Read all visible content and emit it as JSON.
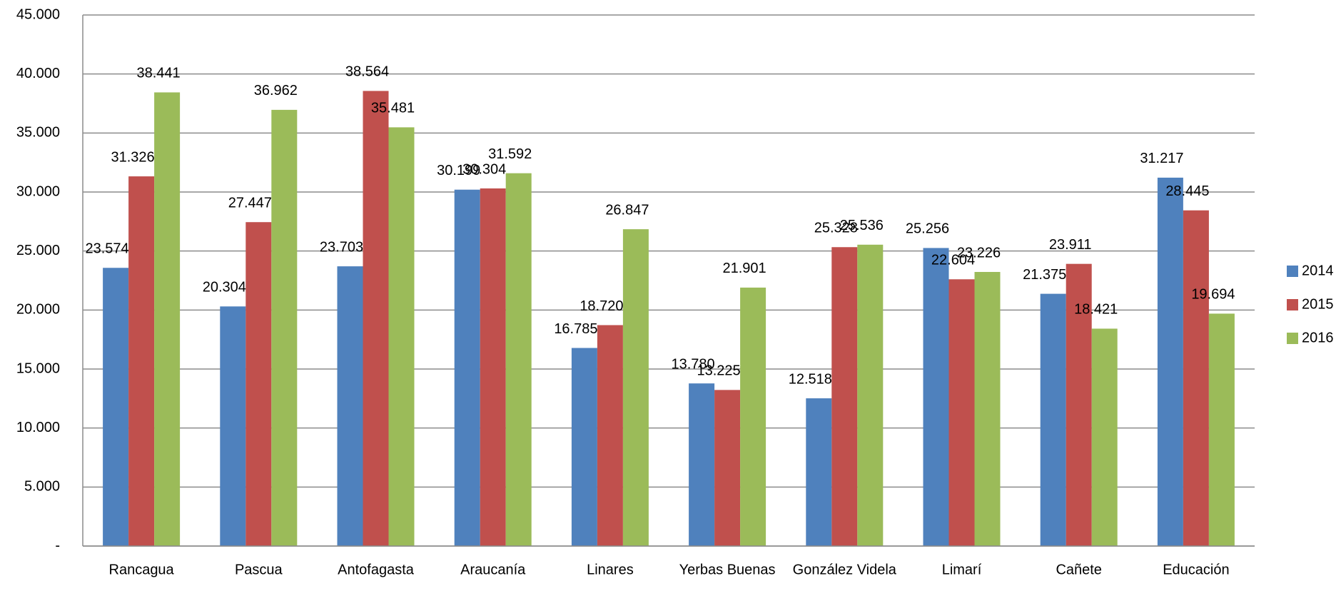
{
  "chart_data": {
    "type": "bar",
    "categories": [
      "Rancagua",
      "Pascua",
      "Antofagasta",
      "Araucanía",
      "Linares",
      "Yerbas Buenas",
      "González Videla",
      "Limarí",
      "Cañete",
      "Educación"
    ],
    "series": [
      {
        "name": "2014",
        "color": "#4f81bd",
        "values": [
          23574,
          20304,
          23703,
          30199,
          16785,
          13780,
          12518,
          25256,
          21375,
          31217
        ],
        "value_labels": [
          "23.574",
          "20.304",
          "23.703",
          "30.199",
          "16.785",
          "13.780",
          "12.518",
          "25.256",
          "21.375",
          "31.217"
        ]
      },
      {
        "name": "2015",
        "color": "#c0504d",
        "values": [
          31326,
          27447,
          38564,
          30304,
          18720,
          13225,
          25328,
          22604,
          23911,
          28445
        ],
        "value_labels": [
          "31.326",
          "27.447",
          "38.564",
          "30.304",
          "18.720",
          "13.225",
          "25.328",
          "22.604",
          "23.911",
          "28.445"
        ]
      },
      {
        "name": "2016",
        "color": "#9bbb59",
        "values": [
          38441,
          36962,
          35481,
          31592,
          26847,
          21901,
          25536,
          23226,
          18421,
          19694
        ],
        "value_labels": [
          "38.441",
          "36.962",
          "35.481",
          "31.592",
          "26.847",
          "21.901",
          "25.536",
          "23.226",
          "18.421",
          "19.694"
        ]
      }
    ],
    "ylim": [
      0,
      45000
    ],
    "yticks": [
      {
        "value": 0,
        "label": "-"
      },
      {
        "value": 5000,
        "label": "5.000"
      },
      {
        "value": 10000,
        "label": "10.000"
      },
      {
        "value": 15000,
        "label": "15.000"
      },
      {
        "value": 20000,
        "label": "20.000"
      },
      {
        "value": 25000,
        "label": "25.000"
      },
      {
        "value": 30000,
        "label": "30.000"
      },
      {
        "value": 35000,
        "label": "35.000"
      },
      {
        "value": 40000,
        "label": "40.000"
      },
      {
        "value": 45000,
        "label": "45.000"
      }
    ],
    "grid": true,
    "legend": "right"
  }
}
